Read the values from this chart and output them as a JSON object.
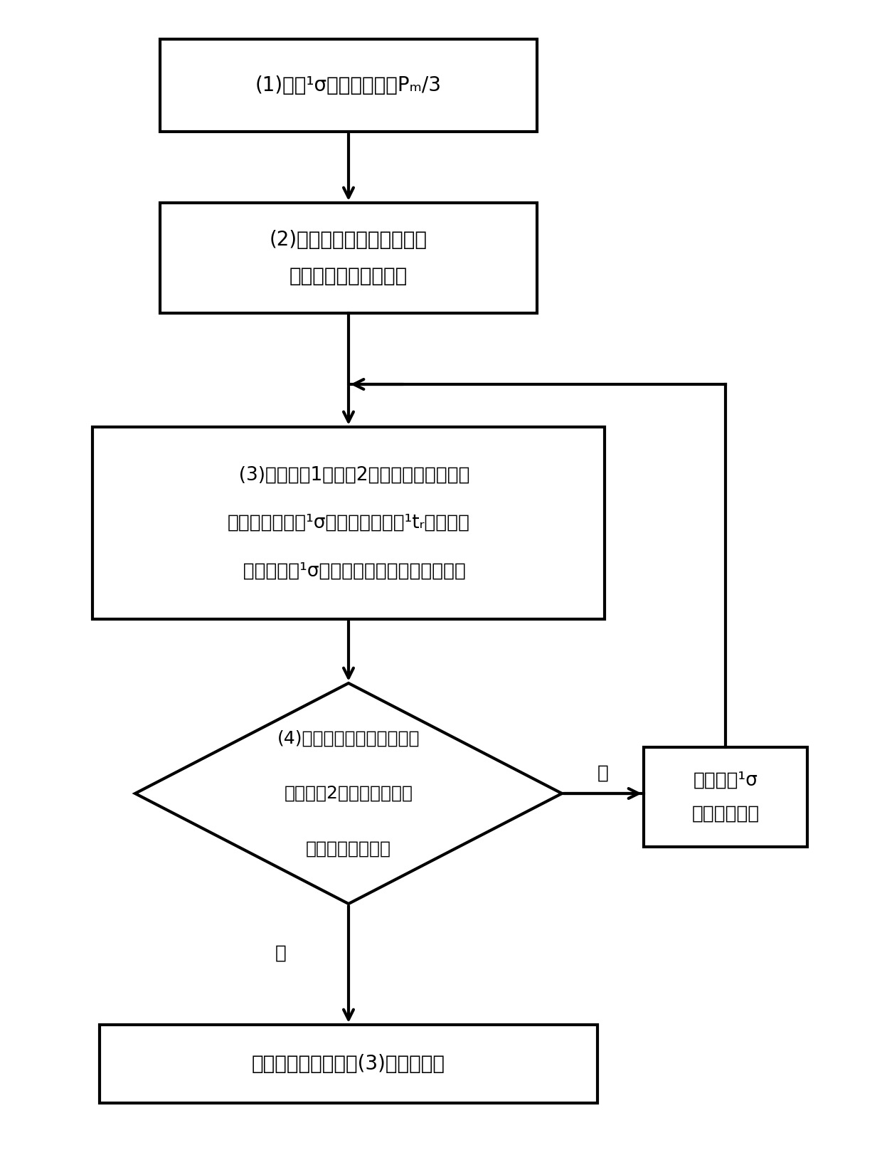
{
  "bg_color": "#ffffff",
  "line_color": "#000000",
  "box1_text": "(1)设置¹σ的初始值等于Pₘ/3",
  "box2_line1": "(2)设置第一维色谱峰的面积",
  "box2_line2": "为两调制峰的面积之和",
  "box3_line1": "  (3)结合公式1和公式2，通过非线性规划法",
  "box3_line2": "求出在所设定的¹σ值条件下的最优¹tᵣ值，得到",
  "box3_line3": "  在所设定的¹σ值条件下的最优第一维色谱峰",
  "diamond_line1": "(4)所得到的第一维色谱峰，",
  "diamond_line2": "通过公式2的计算，是否只",
  "diamond_line3": "能产生两个调制峰",
  "side_line1": "重新赋予¹σ",
  "side_line2": "一个更小的值",
  "bottom_text": "停止计算，采用步骤(3)所得的结果",
  "yes_label": "是",
  "no_label": "否"
}
